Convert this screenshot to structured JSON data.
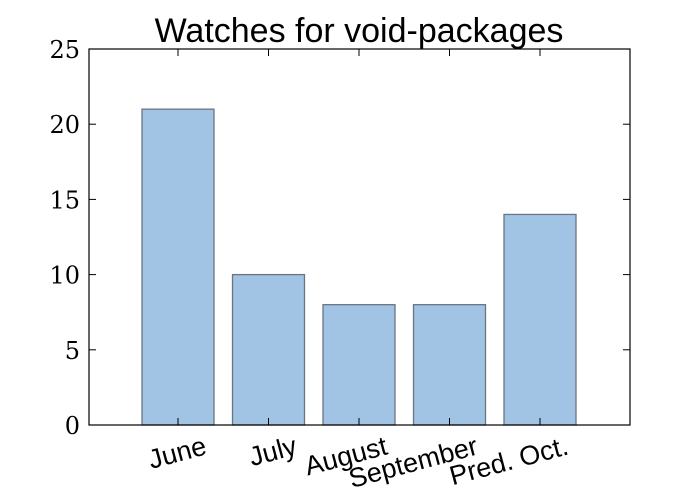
{
  "chart_data": {
    "type": "bar",
    "title": "Watches for void-packages",
    "xlabel": "",
    "ylabel": "",
    "categories": [
      "June",
      "July",
      "August",
      "September",
      "Pred. Oct."
    ],
    "values": [
      21,
      10,
      8,
      8,
      14
    ],
    "ylim": [
      0,
      25
    ],
    "yticks": [
      "0",
      "5",
      "10",
      "15",
      "20",
      "25"
    ],
    "grid": false,
    "legend": "none",
    "bar_color": "#a1c3e4",
    "bar_edge_color": "#6a7580",
    "axis_color": "#000000"
  }
}
